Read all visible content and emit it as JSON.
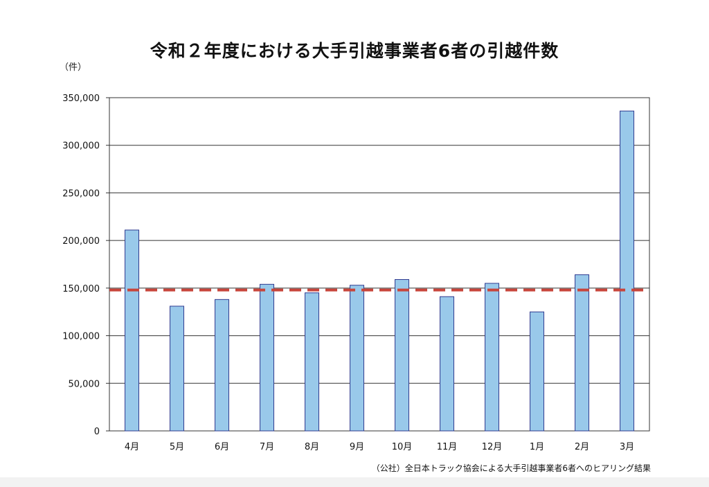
{
  "chart_data": {
    "type": "bar",
    "title": "令和２年度における大手引越事業者6者の引越件数",
    "unit_label": "（件）",
    "source": "（公社）全日本トラック協会による大手引越事業者6者へのヒアリング結果",
    "categories": [
      "4月",
      "5月",
      "6月",
      "7月",
      "8月",
      "9月",
      "10月",
      "11月",
      "12月",
      "1月",
      "2月",
      "3月"
    ],
    "values": [
      211000,
      131000,
      138000,
      154000,
      145000,
      153000,
      159000,
      141000,
      155000,
      125000,
      164000,
      336000
    ],
    "average_line": 148000,
    "ylim": [
      0,
      350000
    ],
    "yticks": [
      0,
      50000,
      100000,
      150000,
      200000,
      250000,
      300000,
      350000
    ],
    "ytick_labels": [
      "0",
      "50,000",
      "100,000",
      "150,000",
      "200,000",
      "250,000",
      "300,000",
      "350,000"
    ],
    "grid": true,
    "colors": {
      "bar_fill": "#99c9ea",
      "bar_stroke": "#2f3a8f",
      "average_line": "#c8453b",
      "grid": "#333333"
    }
  }
}
